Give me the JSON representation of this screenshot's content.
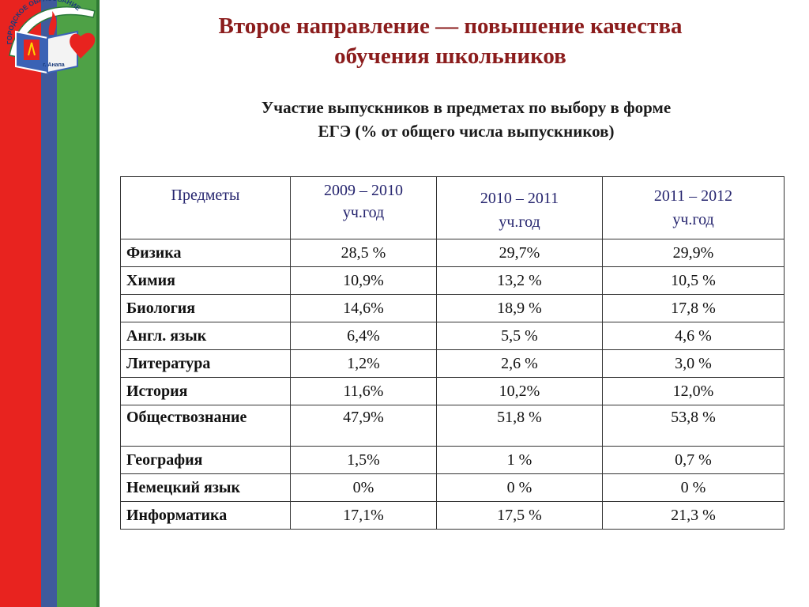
{
  "logo": {
    "arc_text": "ГОРОДСКОЕ ОБРАЗОВАНИЕ",
    "bottom_text": "г. Анапа"
  },
  "slide": {
    "title_line1": "Второе направление — повышение качества",
    "title_line2": "обучения школьников",
    "subtitle_line1": "Участие выпускников в предметах по выбору в форме",
    "subtitle_line2": "ЕГЭ (% от общего числа выпускников)"
  },
  "table": {
    "headers": [
      {
        "line1": "Предметы",
        "line2": ""
      },
      {
        "line1": "2009 – 2010",
        "line2": "уч.год"
      },
      {
        "line1": "2010 – 2011",
        "line2": "уч.год"
      },
      {
        "line1": "2011 – 2012",
        "line2": "уч.год"
      }
    ],
    "rows": [
      {
        "subject": "Физика",
        "y2010": "28,5 %",
        "y2011": "29,7%",
        "y2012": "29,9%"
      },
      {
        "subject": "Химия",
        "y2010": "10,9%",
        "y2011": "13,2 %",
        "y2012": "10,5 %"
      },
      {
        "subject": "Биология",
        "y2010": "14,6%",
        "y2011": "18,9 %",
        "y2012": "17,8 %"
      },
      {
        "subject": "Англ. язык",
        "y2010": "6,4%",
        "y2011": "5,5 %",
        "y2012": "4,6 %"
      },
      {
        "subject": "Литература",
        "y2010": "1,2%",
        "y2011": "2,6 %",
        "y2012": "3,0 %"
      },
      {
        "subject": "История",
        "y2010": "11,6%",
        "y2011": "10,2%",
        "y2012": "12,0%"
      },
      {
        "subject": "Обществознание",
        "y2010": "47,9%",
        "y2011": "51,8 %",
        "y2012": "53,8 %"
      },
      {
        "subject": "География",
        "y2010": "1,5%",
        "y2011": "1 %",
        "y2012": "0,7 %"
      },
      {
        "subject": "Немецкий язык",
        "y2010": "0%",
        "y2011": "0 %",
        "y2012": "0 %"
      },
      {
        "subject": "Информатика",
        "y2010": "17,1%",
        "y2011": "17,5 %",
        "y2012": "21,3 %"
      }
    ]
  },
  "colors": {
    "stripe_red": "#e8231f",
    "stripe_blue": "#3f5a9c",
    "stripe_green": "#4ea146",
    "title": "#8b1c1c",
    "header_text": "#25246e"
  }
}
